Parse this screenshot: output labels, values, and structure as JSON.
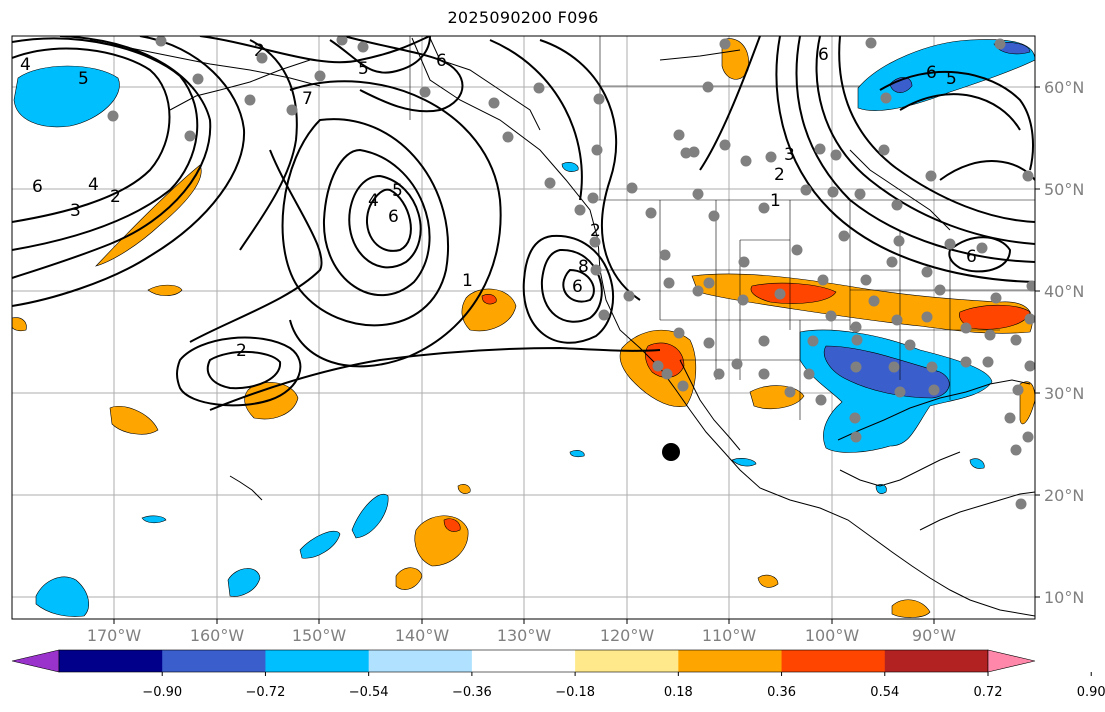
{
  "title": "2025090200 F096",
  "map": {
    "lat_labels": [
      "60°N",
      "50°N",
      "40°N",
      "30°N",
      "20°N",
      "10°N"
    ],
    "lon_labels": [
      "170°W",
      "160°W",
      "150°W",
      "140°W",
      "130°W",
      "120°W",
      "110°W",
      "100°W",
      "90°W"
    ],
    "contour_labels": [
      "4",
      "5",
      "6",
      "4",
      "3",
      "2",
      "2",
      "7",
      "5",
      "6",
      "4",
      "5",
      "6",
      "1",
      "2",
      "2",
      "6",
      "3",
      "2",
      "1",
      "6",
      "5",
      "6",
      "6",
      "8"
    ],
    "colors": {
      "positive": [
        "#ffe98a",
        "#ffa500",
        "#ff4500",
        "#b22222",
        "#ff88aa"
      ],
      "negative": [
        "#9933cc",
        "#00008b",
        "#3a5fcd",
        "#00bfff",
        "#b0e2ff"
      ],
      "contour": "#000000",
      "station_dot": "#808080"
    }
  },
  "colorbar": {
    "ticks": [
      "−0.90",
      "−0.72",
      "−0.54",
      "−0.36",
      "−0.18",
      "0.18",
      "0.36",
      "0.54",
      "0.72",
      "0.90"
    ],
    "bins": [
      "#9933cc",
      "#00008b",
      "#3a5fcd",
      "#00bfff",
      "#b0e2ff",
      "#ffffff",
      "#ffe98a",
      "#ffa500",
      "#ff4500",
      "#b22222",
      "#ff88aa"
    ]
  }
}
